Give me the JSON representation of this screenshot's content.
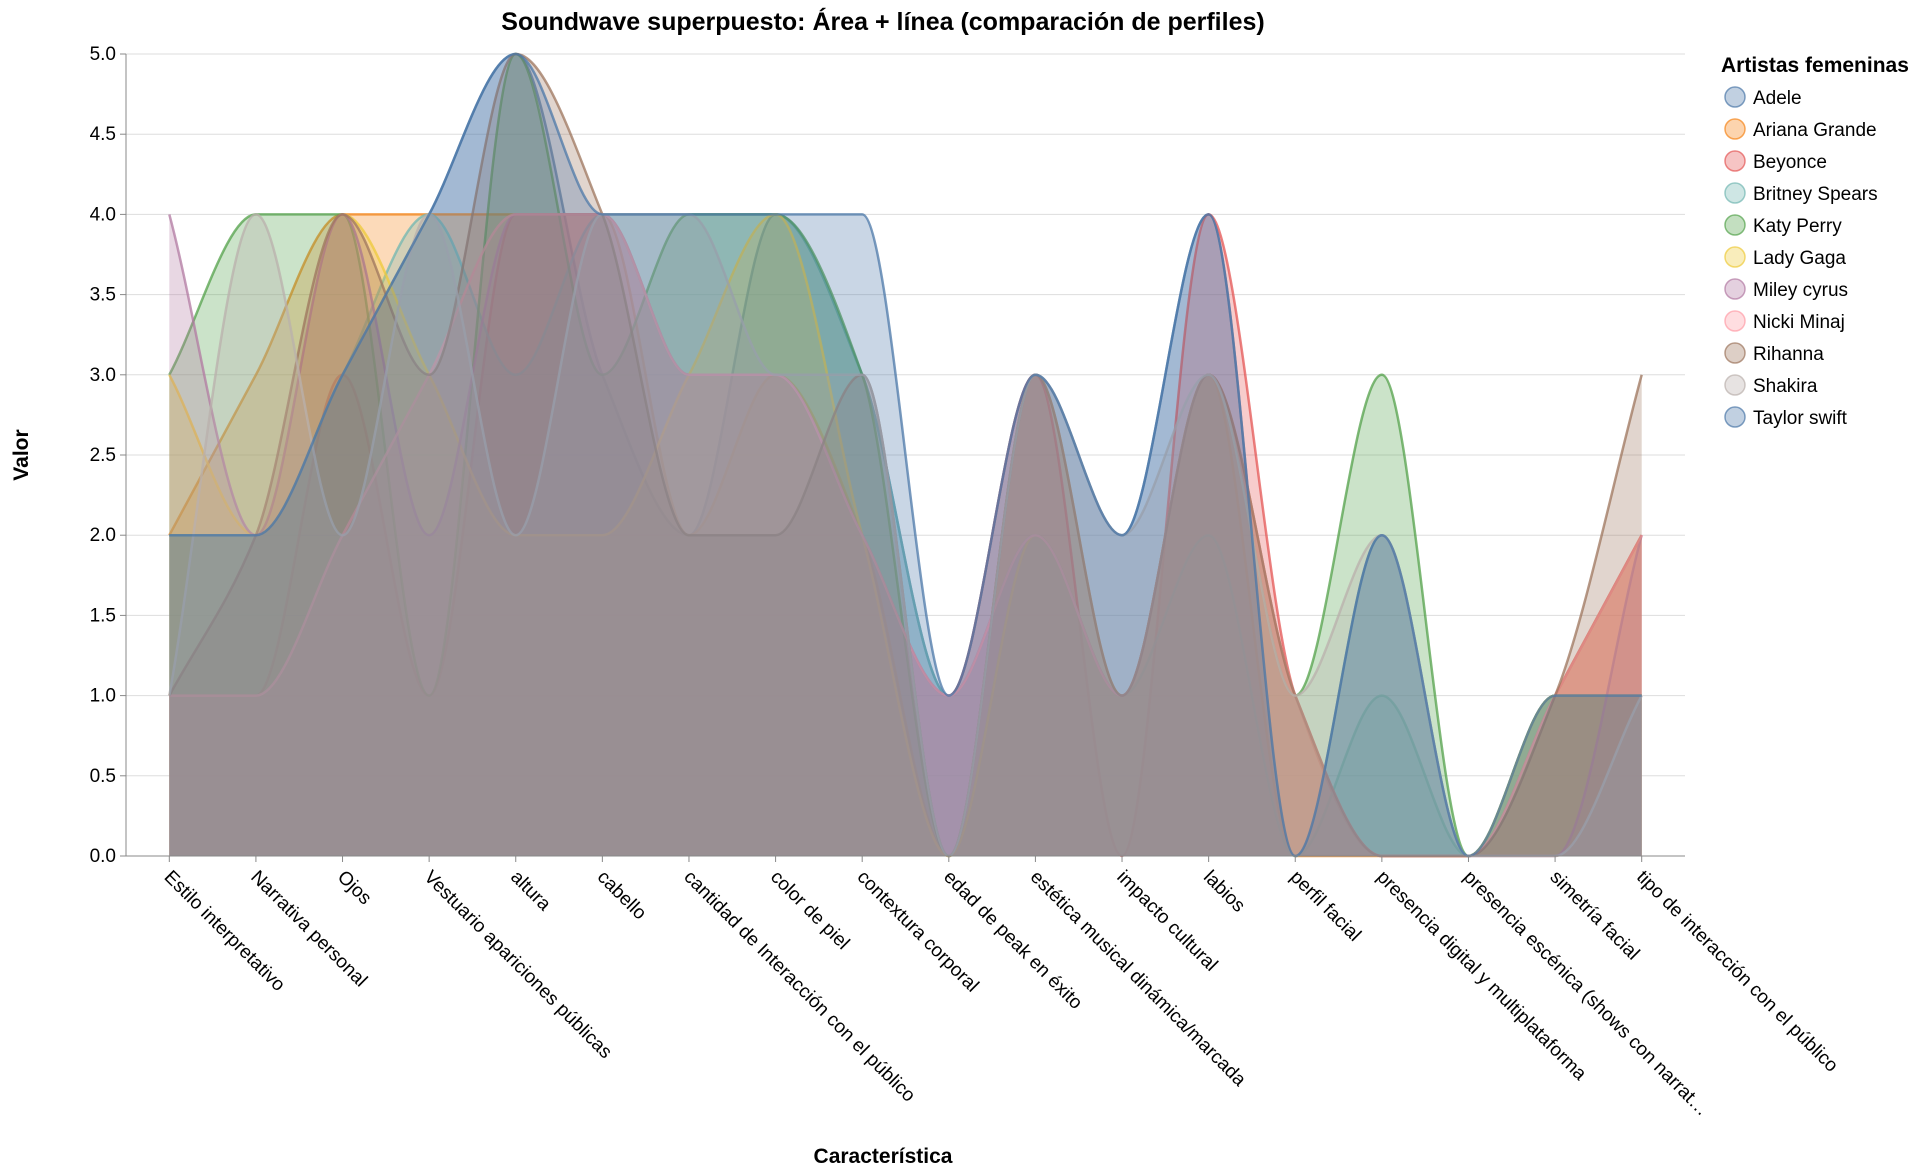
{
  "chart_data": {
    "type": "area",
    "title": "Soundwave superpuesto: Área + línea (comparación de perfiles)",
    "xlabel": "Característica",
    "ylabel": "Valor",
    "ylim": [
      0,
      5
    ],
    "y_ticks": [
      "0.0",
      "0.5",
      "1.0",
      "1.5",
      "2.0",
      "2.5",
      "3.0",
      "3.5",
      "4.0",
      "4.5",
      "5.0"
    ],
    "grid": true,
    "legend_title": "Artistas femeninas",
    "legend_position": "top-right",
    "categories": [
      "Estilo interpretativo",
      "Narrativa personal",
      "Ojos",
      "Vestuario apariciones públicas",
      "altura",
      "cabello",
      "cantidad de Interacción con el público",
      "color de piel",
      "contextura corporal",
      "edad de peak en éxito",
      "estética musical dinámica/marcada",
      "impacto cultural",
      "labios",
      "perfil facial",
      "presencia digital y multiplataforma",
      "presencia escénica (shows con narrat…",
      "simetría facial",
      "tipo de interacción con el público"
    ],
    "series": [
      {
        "name": "Adele",
        "color": "#4c78a8",
        "values": [
          2,
          2,
          3,
          4,
          5,
          3,
          2,
          4,
          3,
          1,
          3,
          2,
          4,
          0,
          2,
          0,
          1,
          1
        ]
      },
      {
        "name": "Ariana Grande",
        "color": "#f58518",
        "values": [
          2,
          3,
          4,
          4,
          4,
          4,
          2,
          3,
          2,
          0,
          3,
          1,
          3,
          0,
          0,
          0,
          1,
          2
        ]
      },
      {
        "name": "Beyonce",
        "color": "#e45756",
        "values": [
          1,
          1,
          3,
          1,
          4,
          4,
          3,
          3,
          2,
          1,
          3,
          0,
          4,
          1,
          0,
          0,
          1,
          2
        ]
      },
      {
        "name": "Britney Spears",
        "color": "#72b7b2",
        "values": [
          2,
          2,
          3,
          4,
          3,
          4,
          4,
          4,
          3,
          1,
          2,
          1,
          2,
          0,
          1,
          0,
          1,
          1
        ]
      },
      {
        "name": "Katy Perry",
        "color": "#54a24b",
        "values": [
          3,
          4,
          4,
          1,
          5,
          3,
          4,
          4,
          3,
          0,
          2,
          1,
          3,
          1,
          3,
          0,
          1,
          1
        ]
      },
      {
        "name": "Lady Gaga",
        "color": "#eeca3b",
        "values": [
          3,
          2,
          4,
          3,
          2,
          2,
          3,
          4,
          2,
          0,
          2,
          1,
          3,
          1,
          0,
          0,
          1,
          1
        ]
      },
      {
        "name": "Miley cyrus",
        "color": "#b279a2",
        "values": [
          4,
          2,
          4,
          2,
          4,
          4,
          3,
          3,
          2,
          1,
          2,
          1,
          3,
          1,
          0,
          0,
          0,
          2
        ]
      },
      {
        "name": "Nicki Minaj",
        "color": "#ff9da6",
        "values": [
          1,
          1,
          2,
          3,
          4,
          4,
          3,
          3,
          2,
          1,
          2,
          1,
          3,
          1,
          0,
          0,
          1,
          2
        ]
      },
      {
        "name": "Rihanna",
        "color": "#9d755d",
        "values": [
          1,
          2,
          4,
          3,
          5,
          4,
          2,
          2,
          3,
          0,
          3,
          1,
          3,
          1,
          0,
          0,
          1,
          3
        ]
      },
      {
        "name": "Shakira",
        "color": "#bab0ac",
        "values": [
          1,
          4,
          2,
          4,
          2,
          4,
          4,
          3,
          3,
          0,
          3,
          2,
          3,
          1,
          2,
          0,
          0,
          1
        ]
      },
      {
        "name": "Taylor swift",
        "color": "#4c78a8",
        "values": [
          2,
          2,
          3,
          4,
          5,
          4,
          4,
          4,
          4,
          1,
          3,
          2,
          4,
          0,
          2,
          0,
          1,
          1
        ]
      }
    ]
  }
}
